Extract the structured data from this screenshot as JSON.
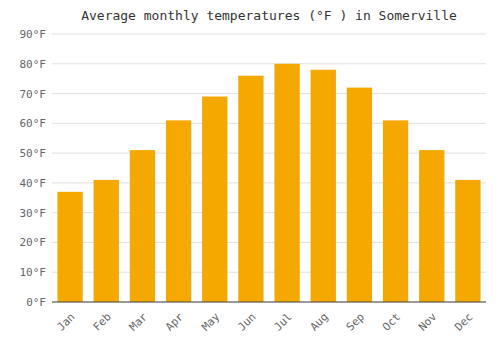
{
  "chart_data": {
    "type": "bar",
    "title": "Average monthly temperatures (°F ) in Somerville",
    "categories": [
      "Jan",
      "Feb",
      "Mar",
      "Apr",
      "May",
      "Jun",
      "Jul",
      "Aug",
      "Sep",
      "Oct",
      "Nov",
      "Dec"
    ],
    "values": [
      37,
      41,
      51,
      61,
      69,
      76,
      80,
      78,
      72,
      61,
      51,
      41
    ],
    "color": "#F5A800",
    "ylim": [
      0,
      90
    ],
    "yticks": [
      {
        "value": 0,
        "label": "0°F"
      },
      {
        "value": 10,
        "label": "10°F"
      },
      {
        "value": 20,
        "label": "20°F"
      },
      {
        "value": 30,
        "label": "30°F"
      },
      {
        "value": 40,
        "label": "40°F"
      },
      {
        "value": 50,
        "label": "50°F"
      },
      {
        "value": 60,
        "label": "60°F"
      },
      {
        "value": 70,
        "label": "70°F"
      },
      {
        "value": 80,
        "label": "80°F"
      },
      {
        "value": 90,
        "label": "90°F"
      }
    ],
    "grid": true
  }
}
